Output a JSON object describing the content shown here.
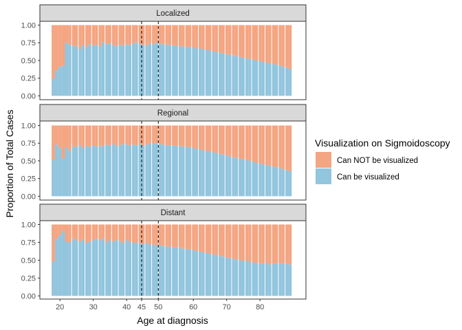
{
  "chart_data": {
    "type": "bar",
    "stacked": "proportion",
    "xlabel": "Age at diagnosis",
    "ylabel": "Proportion of Total Cases",
    "ylim": [
      0,
      1
    ],
    "xlim": [
      18,
      89
    ],
    "y_ticks": [
      0,
      0.25,
      0.5,
      0.75,
      1
    ],
    "y_tick_labels": [
      "0.00",
      "0.25",
      "0.50",
      "0.75",
      "1.00"
    ],
    "x_ticks": [
      20,
      30,
      40,
      45,
      50,
      60,
      70,
      80
    ],
    "x_tick_labels": [
      "20",
      "30",
      "40",
      "45",
      "50",
      "60",
      "70",
      "80"
    ],
    "reference_lines_x": [
      45,
      50
    ],
    "grid": false,
    "legend": {
      "title": "Visualization on Sigmoidoscopy",
      "placement": "right",
      "entries": [
        {
          "label": "Can NOT be visualized",
          "color": "#F4A582"
        },
        {
          "label": "Can be visualized",
          "color": "#92C5DE"
        }
      ]
    },
    "facets": [
      {
        "label": "Localized",
        "x": [
          18,
          19,
          20,
          21,
          22,
          23,
          24,
          25,
          26,
          27,
          28,
          29,
          30,
          31,
          32,
          33,
          34,
          35,
          36,
          37,
          38,
          39,
          40,
          41,
          42,
          43,
          44,
          45,
          46,
          47,
          48,
          49,
          50,
          51,
          52,
          53,
          54,
          55,
          56,
          57,
          58,
          59,
          60,
          61,
          62,
          63,
          64,
          65,
          66,
          67,
          68,
          69,
          70,
          71,
          72,
          73,
          74,
          75,
          76,
          77,
          78,
          79,
          80,
          81,
          82,
          83,
          84,
          85,
          86,
          87,
          88,
          89
        ],
        "series": [
          {
            "name": "Can be visualized",
            "values": [
              0.24,
              0.36,
              0.41,
              0.43,
              0.75,
              0.72,
              0.71,
              0.7,
              0.66,
              0.72,
              0.69,
              0.73,
              0.71,
              0.72,
              0.7,
              0.76,
              0.73,
              0.74,
              0.72,
              0.7,
              0.72,
              0.71,
              0.73,
              0.72,
              0.74,
              0.76,
              0.73,
              0.72,
              0.71,
              0.74,
              0.73,
              0.75,
              0.74,
              0.73,
              0.72,
              0.72,
              0.71,
              0.71,
              0.7,
              0.7,
              0.69,
              0.69,
              0.68,
              0.67,
              0.67,
              0.66,
              0.65,
              0.64,
              0.63,
              0.62,
              0.61,
              0.6,
              0.59,
              0.58,
              0.57,
              0.56,
              0.55,
              0.54,
              0.53,
              0.52,
              0.51,
              0.5,
              0.49,
              0.48,
              0.47,
              0.46,
              0.45,
              0.44,
              0.43,
              0.41,
              0.4,
              0.38
            ]
          },
          {
            "name": "Can NOT be visualized",
            "values": [
              0.76,
              0.64,
              0.59,
              0.57,
              0.25,
              0.28,
              0.29,
              0.3,
              0.34,
              0.28,
              0.31,
              0.27,
              0.29,
              0.28,
              0.3,
              0.24,
              0.27,
              0.26,
              0.28,
              0.3,
              0.28,
              0.29,
              0.27,
              0.28,
              0.26,
              0.24,
              0.27,
              0.28,
              0.29,
              0.26,
              0.27,
              0.25,
              0.26,
              0.27,
              0.28,
              0.28,
              0.29,
              0.29,
              0.3,
              0.3,
              0.31,
              0.31,
              0.32,
              0.33,
              0.33,
              0.34,
              0.35,
              0.36,
              0.37,
              0.38,
              0.39,
              0.4,
              0.41,
              0.42,
              0.43,
              0.44,
              0.45,
              0.46,
              0.47,
              0.48,
              0.49,
              0.5,
              0.51,
              0.52,
              0.53,
              0.54,
              0.55,
              0.56,
              0.57,
              0.59,
              0.6,
              0.62
            ]
          }
        ]
      },
      {
        "label": "Regional",
        "x": [
          18,
          19,
          20,
          21,
          22,
          23,
          24,
          25,
          26,
          27,
          28,
          29,
          30,
          31,
          32,
          33,
          34,
          35,
          36,
          37,
          38,
          39,
          40,
          41,
          42,
          43,
          44,
          45,
          46,
          47,
          48,
          49,
          50,
          51,
          52,
          53,
          54,
          55,
          56,
          57,
          58,
          59,
          60,
          61,
          62,
          63,
          64,
          65,
          66,
          67,
          68,
          69,
          70,
          71,
          72,
          73,
          74,
          75,
          76,
          77,
          78,
          79,
          80,
          81,
          82,
          83,
          84,
          85,
          86,
          87,
          88,
          89
        ],
        "series": [
          {
            "name": "Can be visualized",
            "values": [
              0.51,
              0.73,
              0.68,
              0.53,
              0.69,
              0.64,
              0.7,
              0.7,
              0.72,
              0.68,
              0.71,
              0.7,
              0.72,
              0.7,
              0.71,
              0.71,
              0.73,
              0.72,
              0.74,
              0.71,
              0.72,
              0.74,
              0.73,
              0.72,
              0.73,
              0.72,
              0.74,
              0.71,
              0.73,
              0.75,
              0.74,
              0.75,
              0.74,
              0.73,
              0.72,
              0.72,
              0.72,
              0.71,
              0.71,
              0.7,
              0.7,
              0.69,
              0.68,
              0.67,
              0.66,
              0.65,
              0.64,
              0.63,
              0.62,
              0.61,
              0.6,
              0.59,
              0.58,
              0.56,
              0.55,
              0.54,
              0.53,
              0.52,
              0.51,
              0.5,
              0.49,
              0.47,
              0.46,
              0.45,
              0.44,
              0.43,
              0.42,
              0.41,
              0.4,
              0.38,
              0.37,
              0.35
            ]
          },
          {
            "name": "Can NOT be visualized",
            "values": [
              0.49,
              0.27,
              0.32,
              0.47,
              0.31,
              0.36,
              0.3,
              0.3,
              0.28,
              0.32,
              0.29,
              0.3,
              0.28,
              0.3,
              0.29,
              0.29,
              0.27,
              0.28,
              0.26,
              0.29,
              0.28,
              0.26,
              0.27,
              0.28,
              0.27,
              0.28,
              0.26,
              0.29,
              0.27,
              0.25,
              0.26,
              0.25,
              0.26,
              0.27,
              0.28,
              0.28,
              0.28,
              0.29,
              0.29,
              0.3,
              0.3,
              0.31,
              0.32,
              0.33,
              0.34,
              0.35,
              0.36,
              0.37,
              0.38,
              0.39,
              0.4,
              0.41,
              0.42,
              0.44,
              0.45,
              0.46,
              0.47,
              0.48,
              0.49,
              0.5,
              0.51,
              0.53,
              0.54,
              0.55,
              0.56,
              0.57,
              0.58,
              0.59,
              0.6,
              0.62,
              0.63,
              0.65
            ]
          }
        ]
      },
      {
        "label": "Distant",
        "x": [
          18,
          19,
          20,
          21,
          22,
          23,
          24,
          25,
          26,
          27,
          28,
          29,
          30,
          31,
          32,
          33,
          34,
          35,
          36,
          37,
          38,
          39,
          40,
          41,
          42,
          43,
          44,
          45,
          46,
          47,
          48,
          49,
          50,
          51,
          52,
          53,
          54,
          55,
          56,
          57,
          58,
          59,
          60,
          61,
          62,
          63,
          64,
          65,
          66,
          67,
          68,
          69,
          70,
          71,
          72,
          73,
          74,
          75,
          76,
          77,
          78,
          79,
          80,
          81,
          82,
          83,
          84,
          85,
          86,
          87,
          88,
          89
        ],
        "series": [
          {
            "name": "Can be visualized",
            "values": [
              0.48,
              0.8,
              0.85,
              0.91,
              0.76,
              0.75,
              0.8,
              0.78,
              0.76,
              0.79,
              0.74,
              0.76,
              0.78,
              0.8,
              0.78,
              0.8,
              0.75,
              0.78,
              0.76,
              0.78,
              0.77,
              0.74,
              0.78,
              0.76,
              0.74,
              0.75,
              0.73,
              0.73,
              0.74,
              0.72,
              0.72,
              0.7,
              0.71,
              0.7,
              0.69,
              0.69,
              0.68,
              0.68,
              0.67,
              0.66,
              0.66,
              0.65,
              0.64,
              0.63,
              0.62,
              0.61,
              0.6,
              0.59,
              0.58,
              0.57,
              0.56,
              0.55,
              0.54,
              0.53,
              0.52,
              0.51,
              0.5,
              0.49,
              0.49,
              0.48,
              0.47,
              0.46,
              0.45,
              0.45,
              0.46,
              0.44,
              0.45,
              0.46,
              0.45,
              0.46,
              0.45,
              0.44
            ]
          },
          {
            "name": "Can NOT be visualized",
            "values": [
              0.52,
              0.2,
              0.15,
              0.09,
              0.24,
              0.25,
              0.2,
              0.22,
              0.24,
              0.21,
              0.26,
              0.24,
              0.22,
              0.2,
              0.22,
              0.2,
              0.25,
              0.22,
              0.24,
              0.22,
              0.23,
              0.26,
              0.22,
              0.24,
              0.26,
              0.25,
              0.27,
              0.27,
              0.26,
              0.28,
              0.28,
              0.3,
              0.29,
              0.3,
              0.31,
              0.31,
              0.32,
              0.32,
              0.33,
              0.34,
              0.34,
              0.35,
              0.36,
              0.37,
              0.38,
              0.39,
              0.4,
              0.41,
              0.42,
              0.43,
              0.44,
              0.45,
              0.46,
              0.47,
              0.48,
              0.49,
              0.5,
              0.51,
              0.51,
              0.52,
              0.53,
              0.54,
              0.55,
              0.55,
              0.54,
              0.56,
              0.55,
              0.54,
              0.55,
              0.54,
              0.55,
              0.56
            ]
          }
        ]
      }
    ]
  }
}
